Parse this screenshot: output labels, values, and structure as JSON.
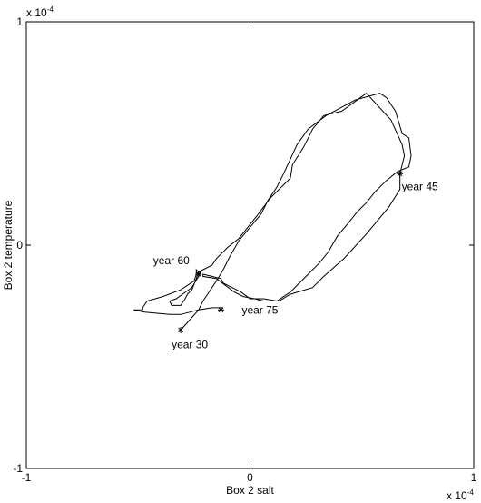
{
  "chart_data": {
    "type": "line",
    "title": "",
    "xlabel": "Box 2 salt",
    "ylabel": "Box 2 temperature",
    "x_exponent": "x 10",
    "x_exponent_power": "-4",
    "y_exponent": "x 10",
    "y_exponent_power": "-4",
    "xlim": [
      -1,
      1
    ],
    "ylim": [
      -1,
      1
    ],
    "xticks": [
      "-1",
      "0",
      "1"
    ],
    "yticks": [
      "-1",
      "0",
      "1"
    ],
    "grid": false,
    "series": [
      {
        "x": [
          -0.31,
          -0.23,
          -0.21,
          -0.19,
          -0.17,
          -0.15,
          -0.12,
          -0.09,
          -0.05,
          0.05,
          0.08,
          0.12,
          0.15,
          0.21,
          0.26,
          0.34,
          0.47,
          0.58,
          0.61,
          0.65,
          0.68,
          0.71,
          0.72,
          0.71,
          0.66,
          0.61,
          0.56,
          0.52,
          0.48,
          0.44,
          0.39,
          0.35,
          0.31,
          0.26,
          0.18,
          0.12,
          0.06,
          0.0,
          -0.04,
          -0.08,
          -0.12,
          -0.13,
          -0.17,
          -0.21,
          -0.21,
          -0.15,
          -0.11,
          -0.07,
          -0.03,
          0.02,
          0.06,
          0.13,
          0.18,
          0.28,
          0.33,
          0.42,
          0.52,
          0.62,
          0.67,
          0.67,
          0.69,
          0.68,
          0.63,
          0.52,
          0.41,
          0.33,
          0.28,
          0.24,
          0.19,
          0.18,
          0.09,
          0.03,
          -0.05,
          -0.1,
          -0.15,
          -0.17,
          -0.23,
          -0.24,
          -0.26,
          -0.28,
          -0.29,
          -0.31,
          -0.35,
          -0.36,
          -0.33,
          -0.26,
          -0.23,
          -0.22,
          -0.23,
          -0.24,
          -0.24,
          -0.25,
          -0.31,
          -0.39,
          -0.46,
          -0.48,
          -0.48,
          -0.52,
          -0.47,
          -0.36,
          -0.31,
          -0.27,
          -0.23,
          -0.17,
          -0.12
        ],
        "y": [
          -0.38,
          -0.29,
          -0.25,
          -0.22,
          -0.19,
          -0.16,
          -0.11,
          -0.05,
          0.02,
          0.14,
          0.2,
          0.26,
          0.32,
          0.45,
          0.52,
          0.58,
          0.65,
          0.68,
          0.66,
          0.6,
          0.5,
          0.48,
          0.4,
          0.35,
          0.33,
          0.29,
          0.24,
          0.19,
          0.15,
          0.1,
          0.04,
          -0.03,
          -0.08,
          -0.13,
          -0.21,
          -0.25,
          -0.24,
          -0.24,
          -0.21,
          -0.19,
          -0.17,
          -0.15,
          -0.14,
          -0.13,
          -0.14,
          -0.15,
          -0.18,
          -0.21,
          -0.23,
          -0.24,
          -0.25,
          -0.25,
          -0.22,
          -0.19,
          -0.14,
          -0.06,
          0.05,
          0.17,
          0.25,
          0.32,
          0.4,
          0.45,
          0.56,
          0.68,
          0.6,
          0.58,
          0.52,
          0.44,
          0.36,
          0.3,
          0.21,
          0.13,
          0.03,
          -0.01,
          -0.06,
          -0.09,
          -0.12,
          -0.15,
          -0.2,
          -0.22,
          -0.24,
          -0.27,
          -0.27,
          -0.25,
          -0.24,
          -0.19,
          -0.14,
          -0.12,
          -0.12,
          -0.11,
          -0.13,
          -0.16,
          -0.2,
          -0.23,
          -0.25,
          -0.28,
          -0.29,
          -0.29,
          -0.3,
          -0.31,
          -0.31,
          -0.3,
          -0.29,
          -0.28,
          -0.28
        ]
      }
    ],
    "markers": [
      {
        "label": "year 30",
        "x": -0.31,
        "y": -0.38
      },
      {
        "label": "year 45",
        "x": 0.67,
        "y": 0.32
      },
      {
        "label": "year 60",
        "x": -0.23,
        "y": -0.13
      },
      {
        "label": "year 75",
        "x": -0.13,
        "y": -0.29
      }
    ]
  }
}
